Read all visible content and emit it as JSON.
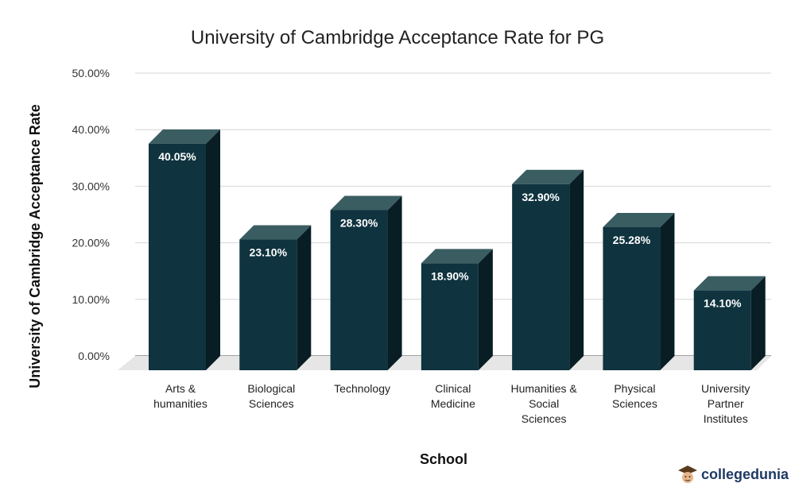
{
  "chart_data": {
    "type": "bar",
    "title": "University of Cambridge Acceptance Rate for PG",
    "xlabel": "School",
    "ylabel": "University of Cambridge Acceptance Rate",
    "categories": [
      [
        "Arts &",
        "humanities"
      ],
      [
        "Biological",
        "Sciences"
      ],
      [
        "Technology"
      ],
      [
        "Clinical",
        "Medicine"
      ],
      [
        "Humanities &",
        "Social",
        "Sciences"
      ],
      [
        "Physical",
        "Sciences"
      ],
      [
        "University",
        "Partner",
        "Institutes"
      ]
    ],
    "values": [
      40.05,
      23.1,
      28.3,
      18.9,
      32.9,
      25.28,
      14.1
    ],
    "value_labels": [
      "40.05%",
      "23.10%",
      "28.30%",
      "18.90%",
      "32.90%",
      "25.28%",
      "14.10%"
    ],
    "ylim": [
      0,
      50
    ],
    "yticks": [
      "0.00%",
      "10.00%",
      "20.00%",
      "30.00%",
      "40.00%",
      "50.00%"
    ],
    "grid": true,
    "bar_style": "3d",
    "colors": {
      "bar_front": "#0f333f",
      "bar_top": "#3a5d62",
      "bar_side": "#081d24",
      "floor": "#e6e6e6"
    }
  },
  "watermark": {
    "text": "collegedunia"
  }
}
